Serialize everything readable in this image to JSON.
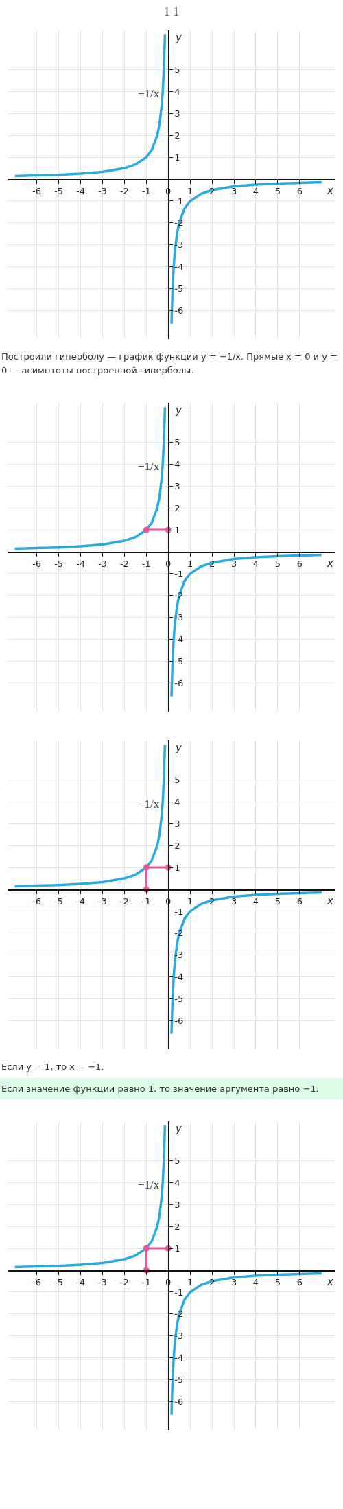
{
  "chart_data": [
    {
      "type": "line",
      "title": "1 1",
      "xlabel": "x",
      "ylabel": "y",
      "xlim": [
        -7.3,
        7.6
      ],
      "ylim": [
        -7.3,
        6.8
      ],
      "xticks": [
        -6,
        -5,
        -4,
        -3,
        -2,
        -1,
        0,
        1,
        2,
        3,
        4,
        5,
        6
      ],
      "yticks": [
        -6,
        -5,
        -4,
        -3,
        -2,
        -1,
        1,
        2,
        3,
        4,
        5
      ],
      "grid": true,
      "series": [
        {
          "color": "#29abe2",
          "x": [
            -7,
            -6,
            -5,
            -4,
            -3,
            -2,
            -1.5,
            -1,
            -0.75,
            -0.5,
            -0.4,
            -0.3,
            -0.25,
            -0.2,
            -0.17,
            -0.15,
            null,
            0.15,
            0.17,
            0.2,
            0.25,
            0.3,
            0.4,
            0.5,
            0.75,
            1,
            1.5,
            2,
            3,
            4,
            5,
            6,
            7
          ],
          "values": [
            0.14,
            0.17,
            0.2,
            0.25,
            0.33,
            0.5,
            0.67,
            1,
            1.33,
            2,
            2.5,
            3.33,
            4,
            5,
            5.9,
            6.6,
            null,
            -6.6,
            -5.9,
            -5,
            -4,
            -3.33,
            -2.5,
            -2,
            -1.33,
            -1,
            -0.67,
            -0.5,
            -0.33,
            -0.25,
            -0.2,
            -0.17,
            -0.14
          ]
        }
      ],
      "annotations": [
        "−1/x",
        "Построили гиперболу — график функции y = −1/x. Прямые x = 0 и y = 0 — асимптоты построенной гиперболы."
      ]
    },
    {
      "type": "line",
      "xlabel": "x",
      "ylabel": "y",
      "xlim": [
        -7.3,
        7.6
      ],
      "ylim": [
        -7.3,
        6.8
      ],
      "xticks": [
        -6,
        -5,
        -4,
        -3,
        -2,
        -1,
        0,
        1,
        2,
        3,
        4,
        5,
        6
      ],
      "yticks": [
        -6,
        -5,
        -4,
        -3,
        -2,
        -1,
        1,
        2,
        3,
        4,
        5
      ],
      "grid": true,
      "series": [
        {
          "color": "#29abe2",
          "x": [
            -7,
            -6,
            -5,
            -4,
            -3,
            -2,
            -1.5,
            -1,
            -0.75,
            -0.5,
            -0.4,
            -0.3,
            -0.25,
            -0.2,
            -0.17,
            -0.15,
            null,
            0.15,
            0.17,
            0.2,
            0.25,
            0.3,
            0.4,
            0.5,
            0.75,
            1,
            1.5,
            2,
            3,
            4,
            5,
            6,
            7
          ],
          "values": [
            0.14,
            0.17,
            0.2,
            0.25,
            0.33,
            0.5,
            0.67,
            1,
            1.33,
            2,
            2.5,
            3.33,
            4,
            5,
            5.9,
            6.6,
            null,
            -6.6,
            -5.9,
            -5,
            -4,
            -3.33,
            -2.5,
            -2,
            -1.33,
            -1,
            -0.67,
            -0.5,
            -0.33,
            -0.25,
            -0.2,
            -0.17,
            -0.14
          ]
        },
        {
          "color": "#e8559a",
          "marker": "circle",
          "x": [
            -1,
            0
          ],
          "values": [
            1,
            1
          ]
        }
      ],
      "annotations": [
        "−1/x"
      ]
    },
    {
      "type": "line",
      "xlabel": "x",
      "ylabel": "y",
      "xlim": [
        -7.3,
        7.6
      ],
      "ylim": [
        -7.3,
        6.8
      ],
      "xticks": [
        -6,
        -5,
        -4,
        -3,
        -2,
        -1,
        0,
        1,
        2,
        3,
        4,
        5,
        6
      ],
      "yticks": [
        -6,
        -5,
        -4,
        -3,
        -2,
        -1,
        1,
        2,
        3,
        4,
        5
      ],
      "grid": true,
      "series": [
        {
          "color": "#29abe2",
          "x": [
            -7,
            -6,
            -5,
            -4,
            -3,
            -2,
            -1.5,
            -1,
            -0.75,
            -0.5,
            -0.4,
            -0.3,
            -0.25,
            -0.2,
            -0.17,
            -0.15,
            null,
            0.15,
            0.17,
            0.2,
            0.25,
            0.3,
            0.4,
            0.5,
            0.75,
            1,
            1.5,
            2,
            3,
            4,
            5,
            6,
            7
          ],
          "values": [
            0.14,
            0.17,
            0.2,
            0.25,
            0.33,
            0.5,
            0.67,
            1,
            1.33,
            2,
            2.5,
            3.33,
            4,
            5,
            5.9,
            6.6,
            null,
            -6.6,
            -5.9,
            -5,
            -4,
            -3.33,
            -2.5,
            -2,
            -1.33,
            -1,
            -0.67,
            -0.5,
            -0.33,
            -0.25,
            -0.2,
            -0.17,
            -0.14
          ]
        },
        {
          "color": "#e8559a",
          "marker": "circle",
          "x": [
            -1,
            -1,
            0
          ],
          "values": [
            0,
            1,
            1
          ]
        }
      ],
      "annotations": [
        "−1/x",
        "Если y = 1, то x = −1.",
        "Если значение функции равно 1, то значение аргумента равно −1."
      ]
    },
    {
      "type": "line",
      "xlabel": "x",
      "ylabel": "y",
      "xlim": [
        -7.3,
        7.6
      ],
      "ylim": [
        -7.3,
        6.8
      ],
      "xticks": [
        -6,
        -5,
        -4,
        -3,
        -2,
        -1,
        0,
        1,
        2,
        3,
        4,
        5,
        6
      ],
      "yticks": [
        -6,
        -5,
        -4,
        -3,
        -2,
        -1,
        1,
        2,
        3,
        4,
        5
      ],
      "grid": true,
      "series": [
        {
          "color": "#29abe2",
          "x": [
            -7,
            -6,
            -5,
            -4,
            -3,
            -2,
            -1.5,
            -1,
            -0.75,
            -0.5,
            -0.4,
            -0.3,
            -0.25,
            -0.2,
            -0.17,
            -0.15,
            null,
            0.15,
            0.17,
            0.2,
            0.25,
            0.3,
            0.4,
            0.5,
            0.75,
            1,
            1.5,
            2,
            3,
            4,
            5,
            6,
            7
          ],
          "values": [
            0.14,
            0.17,
            0.2,
            0.25,
            0.33,
            0.5,
            0.67,
            1,
            1.33,
            2,
            2.5,
            3.33,
            4,
            5,
            5.9,
            6.6,
            null,
            -6.6,
            -5.9,
            -5,
            -4,
            -3.33,
            -2.5,
            -2,
            -1.33,
            -1,
            -0.67,
            -0.5,
            -0.33,
            -0.25,
            -0.2,
            -0.17,
            -0.14
          ]
        },
        {
          "color": "#e8559a",
          "marker": "circle",
          "x": [
            -1,
            -1,
            0
          ],
          "values": [
            0,
            1,
            1
          ]
        }
      ],
      "annotations": [
        "−1/x"
      ]
    }
  ]
}
